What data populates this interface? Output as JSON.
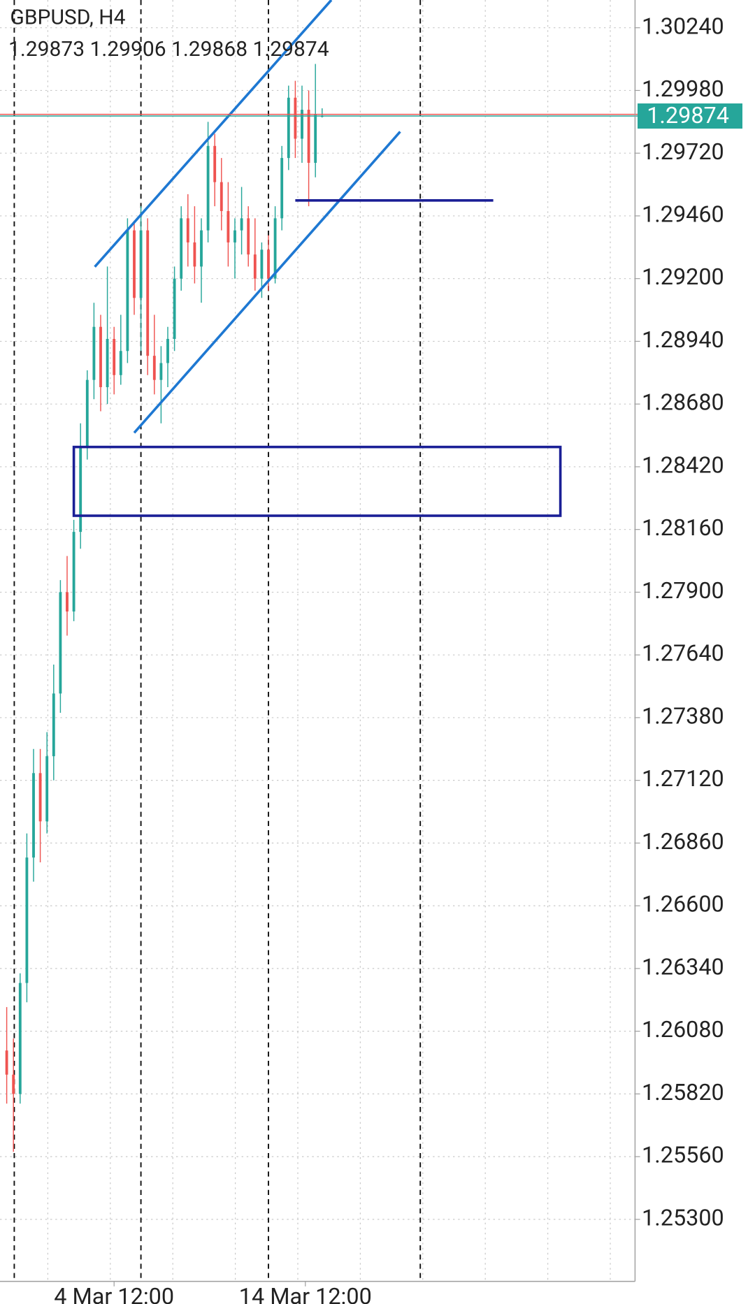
{
  "chart_data": {
    "type": "candlestick",
    "symbol_label": "GBPUSD, H4",
    "ohlc_label": "1.29873 1.29906 1.29868 1.29874",
    "up_color": "#26a69a",
    "down_color": "#ef5350",
    "x": [
      0,
      1,
      2,
      3,
      4,
      5,
      6,
      7,
      8,
      9,
      10,
      11,
      12,
      13,
      14,
      15,
      16,
      17,
      18,
      19,
      20,
      21,
      22,
      23,
      24,
      25,
      26,
      27,
      28,
      29,
      30,
      31,
      32,
      33,
      34,
      35,
      36,
      37,
      38,
      39,
      40,
      41,
      42,
      43,
      44,
      45,
      46,
      47
    ],
    "open": [
      1.26,
      1.259,
      1.2582,
      1.2628,
      1.268,
      1.2715,
      1.2695,
      1.2722,
      1.2748,
      1.279,
      1.2782,
      1.2815,
      1.285,
      1.2878,
      1.29,
      1.2875,
      1.2895,
      1.288,
      1.289,
      1.294,
      1.2912,
      1.294,
      1.2888,
      1.2878,
      1.2885,
      1.2895,
      1.292,
      1.2945,
      1.2935,
      1.2925,
      1.294,
      1.2975,
      1.296,
      1.2948,
      1.2935,
      1.294,
      1.2945,
      1.293,
      1.292,
      1.2932,
      1.292,
      1.2945,
      1.297,
      1.2995,
      1.2978,
      1.299,
      1.2968,
      1.29873
    ],
    "high": [
      1.2618,
      1.2605,
      1.2632,
      1.269,
      1.2725,
      1.2725,
      1.2732,
      1.276,
      1.2795,
      1.2805,
      1.282,
      1.286,
      1.2882,
      1.291,
      1.2905,
      1.2925,
      1.29,
      1.2905,
      1.2945,
      1.2944,
      1.295,
      1.2945,
      1.2905,
      1.2892,
      1.29,
      1.2925,
      1.295,
      1.2955,
      1.295,
      1.2945,
      1.2985,
      1.298,
      1.297,
      1.296,
      1.2945,
      1.2958,
      1.295,
      1.2945,
      1.2935,
      1.2938,
      1.295,
      1.2975,
      1.3,
      1.3002,
      1.3,
      1.2998,
      1.3009,
      1.29906
    ],
    "low": [
      1.2578,
      1.2558,
      1.2578,
      1.262,
      1.267,
      1.2678,
      1.269,
      1.2712,
      1.274,
      1.2772,
      1.2778,
      1.2808,
      1.2845,
      1.287,
      1.2865,
      1.2868,
      1.2872,
      1.2876,
      1.2885,
      1.2905,
      1.289,
      1.288,
      1.2872,
      1.286,
      1.2875,
      1.289,
      1.2915,
      1.2925,
      1.2918,
      1.291,
      1.2935,
      1.295,
      1.294,
      1.2925,
      1.292,
      1.293,
      1.2925,
      1.2915,
      1.2912,
      1.2915,
      1.2918,
      1.294,
      1.2965,
      1.297,
      1.2968,
      1.295,
      1.2962,
      1.29868
    ],
    "close": [
      1.259,
      1.2582,
      1.2628,
      1.268,
      1.2715,
      1.2695,
      1.2722,
      1.2748,
      1.279,
      1.2782,
      1.2815,
      1.285,
      1.2878,
      1.29,
      1.2875,
      1.2895,
      1.288,
      1.289,
      1.294,
      1.2912,
      1.294,
      1.2888,
      1.2878,
      1.2885,
      1.2895,
      1.292,
      1.2945,
      1.2935,
      1.2925,
      1.294,
      1.2975,
      1.296,
      1.2948,
      1.2935,
      1.294,
      1.2945,
      1.293,
      1.292,
      1.2932,
      1.292,
      1.2945,
      1.297,
      1.2995,
      1.2978,
      1.299,
      1.2968,
      1.2988,
      1.29874
    ],
    "xlim": [
      -1,
      93.625
    ],
    "ylim": [
      1.25043,
      1.30355
    ],
    "xticks": [
      {
        "value": 16,
        "label": "4 Mar 12:00"
      },
      {
        "value": 44.5,
        "label": "14 Mar 12:00"
      }
    ],
    "yticks": [
      {
        "value": 1.3024,
        "label": "1.30240"
      },
      {
        "value": 1.2998,
        "label": "1.29980"
      },
      {
        "value": 1.2972,
        "label": "1.29720"
      },
      {
        "value": 1.2946,
        "label": "1.29460"
      },
      {
        "value": 1.292,
        "label": "1.29200"
      },
      {
        "value": 1.2894,
        "label": "1.28940"
      },
      {
        "value": 1.2868,
        "label": "1.28680"
      },
      {
        "value": 1.2842,
        "label": "1.28420"
      },
      {
        "value": 1.2816,
        "label": "1.28160"
      },
      {
        "value": 1.279,
        "label": "1.27900"
      },
      {
        "value": 1.2764,
        "label": "1.27640"
      },
      {
        "value": 1.2738,
        "label": "1.27380"
      },
      {
        "value": 1.2712,
        "label": "1.27120"
      },
      {
        "value": 1.2686,
        "label": "1.26860"
      },
      {
        "value": 1.266,
        "label": "1.26600"
      },
      {
        "value": 1.2634,
        "label": "1.26340"
      },
      {
        "value": 1.2608,
        "label": "1.26080"
      },
      {
        "value": 1.2582,
        "label": "1.25820"
      },
      {
        "value": 1.2556,
        "label": "1.25560"
      },
      {
        "value": 1.253,
        "label": "1.25300"
      }
    ],
    "grid": true,
    "period_separators": [
      1.125,
      20,
      39,
      61.625
    ],
    "last_price": {
      "value": 1.29874,
      "label": "1.29874",
      "color": "#26a69a"
    },
    "ask_line": {
      "value": 1.29881,
      "color": "#ef5350"
    },
    "trend_lines": [
      {
        "color": "#1e78d2",
        "x": [
          13.125,
          48.375
        ],
        "y": [
          1.29249,
          1.30355
        ]
      },
      {
        "color": "#1e78d2",
        "x": [
          19,
          58.625
        ],
        "y": [
          1.28561,
          1.29809
        ]
      }
    ],
    "level_line": {
      "color": "#1a1f96",
      "x": [
        43,
        72.5
      ],
      "y": 1.29524
    },
    "zone": {
      "color": "#1a1f96",
      "x": [
        10,
        82.5
      ],
      "y": [
        1.28217,
        1.28502
      ]
    }
  }
}
